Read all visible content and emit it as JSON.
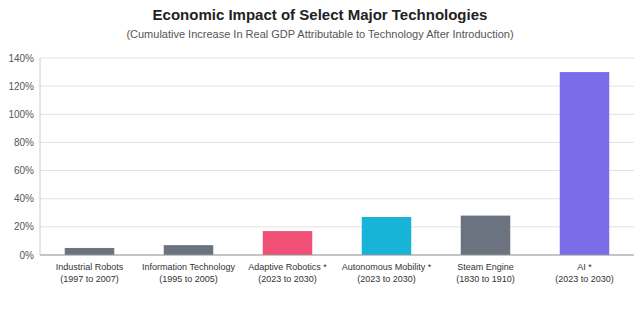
{
  "chart_data": {
    "type": "bar",
    "title": "Economic Impact of Select Major Technologies",
    "subtitle": "(Cumulative Increase In Real GDP Attributable to Technology After Introduction)",
    "categories": [
      "Industrial Robots\n(1997 to 2007)",
      "Information Technology\n(1995 to 2005)",
      "Adaptive Robotics *\n(2023 to 2030)",
      "Autonomous Mobility *\n(2023 to 2030)",
      "Steam Engine\n(1830 to 1910)",
      "AI *\n(2023 to 2030)"
    ],
    "values": [
      5,
      7,
      17,
      27,
      28,
      130
    ],
    "colors": [
      "#6b7280",
      "#6b7280",
      "#f05075",
      "#18b4d8",
      "#6b7280",
      "#7b6de9"
    ],
    "ylim": [
      0,
      140
    ],
    "yticks": [
      {
        "value": 0,
        "label": "0%"
      },
      {
        "value": 20,
        "label": "20%"
      },
      {
        "value": 40,
        "label": "40%"
      },
      {
        "value": 60,
        "label": "60%"
      },
      {
        "value": 80,
        "label": "80%"
      },
      {
        "value": 100,
        "label": "100%"
      },
      {
        "value": 120,
        "label": "120%"
      },
      {
        "value": 140,
        "label": "140%"
      }
    ],
    "grid": true
  }
}
